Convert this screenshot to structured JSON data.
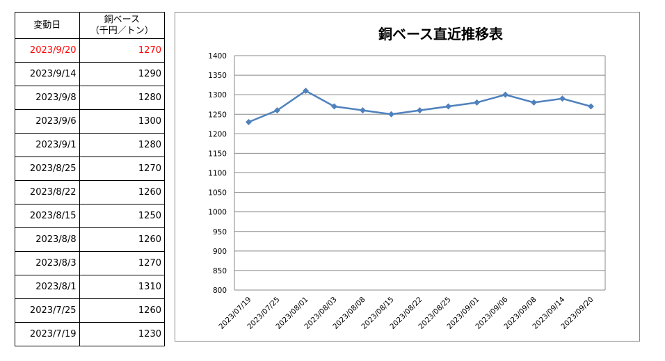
{
  "table": {
    "headers": [
      "変動日",
      "銅ベース\n（千円／トン）"
    ],
    "header_line1": "銅ベース",
    "header_line2": "（千円／トン）",
    "highlight_color": "#ff0000",
    "rows": [
      [
        "2023/9/20",
        "1270"
      ],
      [
        "2023/9/14",
        "1290"
      ],
      [
        "2023/9/8",
        "1280"
      ],
      [
        "2023/9/6",
        "1300"
      ],
      [
        "2023/9/1",
        "1280"
      ],
      [
        "2023/8/25",
        "1270"
      ],
      [
        "2023/8/22",
        "1260"
      ],
      [
        "2023/8/15",
        "1250"
      ],
      [
        "2023/8/8",
        "1260"
      ],
      [
        "2023/8/3",
        "1270"
      ],
      [
        "2023/8/1",
        "1310"
      ],
      [
        "2023/7/25",
        "1260"
      ],
      [
        "2023/7/19",
        "1230"
      ]
    ]
  },
  "chart_data": {
    "type": "line",
    "title": "銅ベース直近推移表",
    "categories": [
      "2023/07/19",
      "2023/07/25",
      "2023/08/01",
      "2023/08/03",
      "2023/08/08",
      "2023/08/15",
      "2023/08/22",
      "2023/08/25",
      "2023/09/01",
      "2023/09/06",
      "2023/09/08",
      "2023/09/14",
      "2023/09/20"
    ],
    "values": [
      1230,
      1260,
      1310,
      1270,
      1260,
      1250,
      1260,
      1270,
      1280,
      1300,
      1280,
      1290,
      1270
    ],
    "ylim": [
      800,
      1400
    ],
    "yticks": [
      800,
      850,
      900,
      950,
      1000,
      1050,
      1100,
      1150,
      1200,
      1250,
      1300,
      1350,
      1400
    ],
    "grid": true,
    "marker": "diamond",
    "line_color": "#4f81bd"
  }
}
